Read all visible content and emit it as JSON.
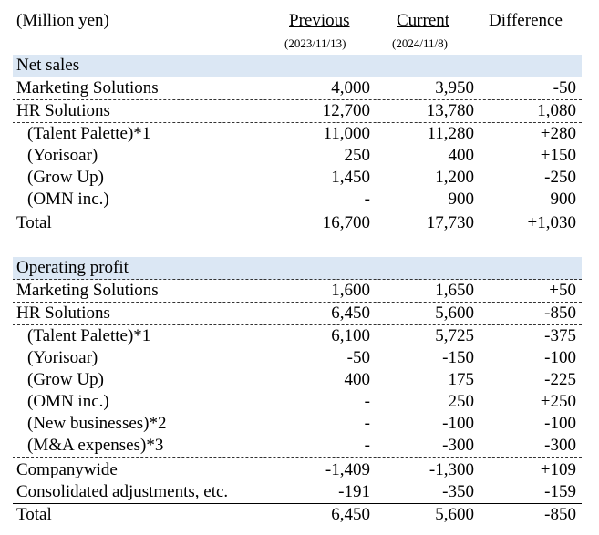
{
  "header": {
    "unit": "(Million yen)",
    "col_previous": "Previous",
    "col_previous_date": "(2023/11/13)",
    "col_current": "Current",
    "col_current_date": "(2024/11/8)",
    "col_difference": "Difference"
  },
  "net_sales": {
    "title": "Net sales",
    "rows": [
      {
        "label": "Marketing Solutions",
        "prev": "4,000",
        "curr": "3,950",
        "diff": "-50"
      },
      {
        "label": "HR Solutions",
        "prev": "12,700",
        "curr": "13,780",
        "diff": "1,080"
      },
      {
        "label": "(Talent Palette)*1",
        "prev": "11,000",
        "curr": "11,280",
        "diff": "+280"
      },
      {
        "label": "(Yorisoar)",
        "prev": "250",
        "curr": "400",
        "diff": "+150"
      },
      {
        "label": "(Grow Up)",
        "prev": "1,450",
        "curr": "1,200",
        "diff": "-250"
      },
      {
        "label": "(OMN inc.)",
        "prev": "-",
        "curr": "900",
        "diff": "900"
      }
    ],
    "total": {
      "label": "Total",
      "prev": "16,700",
      "curr": "17,730",
      "diff": "+1,030"
    }
  },
  "operating_profit": {
    "title": "Operating profit",
    "rows": [
      {
        "label": "Marketing Solutions",
        "prev": "1,600",
        "curr": "1,650",
        "diff": "+50"
      },
      {
        "label": "HR Solutions",
        "prev": "6,450",
        "curr": "5,600",
        "diff": "-850"
      },
      {
        "label": "(Talent Palette)*1",
        "prev": "6,100",
        "curr": "5,725",
        "diff": "-375"
      },
      {
        "label": "(Yorisoar)",
        "prev": "-50",
        "curr": "-150",
        "diff": "-100"
      },
      {
        "label": "(Grow Up)",
        "prev": "400",
        "curr": "175",
        "diff": "-225"
      },
      {
        "label": "(OMN inc.)",
        "prev": "-",
        "curr": "250",
        "diff": "+250"
      },
      {
        "label": "(New businesses)*2",
        "prev": "-",
        "curr": "-100",
        "diff": "-100"
      },
      {
        "label": "(M&A expenses)*3",
        "prev": "-",
        "curr": "-300",
        "diff": "-300"
      },
      {
        "label": "Companywide",
        "prev": "-1,409",
        "curr": "-1,300",
        "diff": "+109"
      },
      {
        "label": "Consolidated adjustments, etc.",
        "prev": "-191",
        "curr": "-350",
        "diff": "-159"
      }
    ],
    "total": {
      "label": "Total",
      "prev": "6,450",
      "curr": "5,600",
      "diff": "-850"
    }
  }
}
